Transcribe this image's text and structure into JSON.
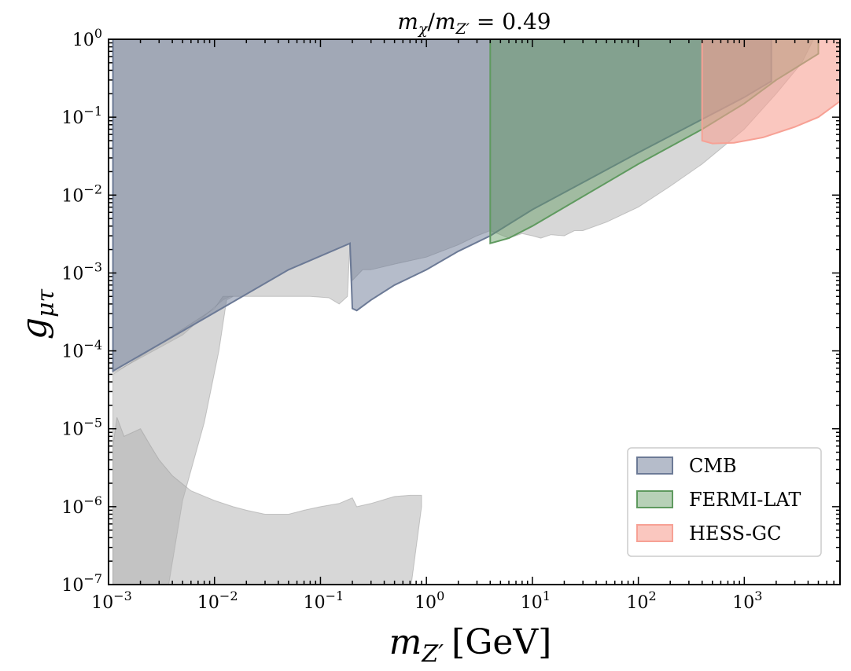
{
  "chart_data": {
    "type": "area",
    "title": "m_χ/m_Z′ = 0.49",
    "title_parts": {
      "lhs": "m",
      "sub1": "χ",
      "slash": "/",
      "m2": "m",
      "sub2": "Z′",
      "rhs": " = 0.49"
    },
    "xlabel": "m_Z′ [GeV]",
    "xlabel_parts": {
      "m": "m",
      "sub": "Z′",
      "unit": "[GeV]"
    },
    "ylabel": "g_μτ",
    "ylabel_parts": {
      "g": "g",
      "sub": "μτ"
    },
    "x_scale": "log",
    "y_scale": "log",
    "xlim": [
      0.001,
      8000
    ],
    "ylim": [
      1e-07,
      1
    ],
    "x_ticks": [
      {
        "value": 0.001,
        "base": "10",
        "exp": "−3"
      },
      {
        "value": 0.01,
        "base": "10",
        "exp": "−2"
      },
      {
        "value": 0.1,
        "base": "10",
        "exp": "−1"
      },
      {
        "value": 1,
        "base": "10",
        "exp": "0"
      },
      {
        "value": 10,
        "base": "10",
        "exp": "1"
      },
      {
        "value": 100,
        "base": "10",
        "exp": "2"
      },
      {
        "value": 1000,
        "base": "10",
        "exp": "3"
      }
    ],
    "y_ticks": [
      {
        "value": 1e-07,
        "base": "10",
        "exp": "−7"
      },
      {
        "value": 1e-06,
        "base": "10",
        "exp": "−6"
      },
      {
        "value": 1e-05,
        "base": "10",
        "exp": "−5"
      },
      {
        "value": 0.0001,
        "base": "10",
        "exp": "−4"
      },
      {
        "value": 0.001,
        "base": "10",
        "exp": "−3"
      },
      {
        "value": 0.01,
        "base": "10",
        "exp": "−2"
      },
      {
        "value": 0.1,
        "base": "10",
        "exp": "−1"
      },
      {
        "value": 1,
        "base": "10",
        "exp": "0"
      }
    ],
    "legend_position": "bottom-right",
    "grid": false,
    "background_regions": [
      {
        "color": "#b0b0b0",
        "opacity": 0.5,
        "polygon": [
          [
            0.0011,
            5.2e-05
          ],
          [
            0.005,
            0.00016
          ],
          [
            0.012,
            0.00045
          ],
          [
            0.014,
            0.0005
          ],
          [
            0.03,
            0.0005
          ],
          [
            0.08,
            0.0005
          ],
          [
            0.12,
            0.00048
          ],
          [
            0.15,
            0.0004
          ],
          [
            0.18,
            0.0005
          ],
          [
            0.19,
            0.0025
          ],
          [
            0.2,
            0.0008
          ],
          [
            0.25,
            0.0011
          ],
          [
            0.3,
            0.0011
          ],
          [
            0.5,
            0.0013
          ],
          [
            1,
            0.0016
          ],
          [
            2,
            0.0023
          ],
          [
            3,
            0.003
          ],
          [
            4,
            0.0035
          ],
          [
            6,
            0.0028
          ],
          [
            8,
            0.0032
          ],
          [
            10,
            0.003
          ],
          [
            12,
            0.0028
          ],
          [
            15,
            0.0031
          ],
          [
            20,
            0.003
          ],
          [
            25,
            0.0035
          ],
          [
            30,
            0.0035
          ],
          [
            50,
            0.0045
          ],
          [
            100,
            0.007
          ],
          [
            200,
            0.013
          ],
          [
            400,
            0.025
          ],
          [
            1000,
            0.07
          ],
          [
            2000,
            0.2
          ],
          [
            3500,
            0.5
          ],
          [
            4500,
            1
          ],
          [
            0.0011,
            1
          ]
        ]
      },
      {
        "color": "#b0b0b0",
        "opacity": 0.5,
        "polygon": [
          [
            0.0037,
            1e-07
          ],
          [
            0.005,
            1.2e-06
          ],
          [
            0.008,
            1.2e-05
          ],
          [
            0.011,
            0.0001
          ],
          [
            0.013,
            0.00045
          ],
          [
            0.015,
            0.0005
          ],
          [
            0.012,
            0.0005
          ],
          [
            0.01,
            0.00035
          ],
          [
            0.0011,
            5e-05
          ],
          [
            0.0011,
            1e-07
          ]
        ]
      },
      {
        "color": "#b0b0b0",
        "opacity": 0.5,
        "polygon": [
          [
            0.0011,
            1e-07
          ],
          [
            0.0011,
            6e-06
          ],
          [
            0.0012,
            1.4e-05
          ],
          [
            0.0014,
            8e-06
          ],
          [
            0.002,
            1e-05
          ],
          [
            0.0025,
            6e-06
          ],
          [
            0.003,
            4e-06
          ],
          [
            0.004,
            2.5e-06
          ],
          [
            0.006,
            1.6e-06
          ],
          [
            0.01,
            1.2e-06
          ],
          [
            0.015,
            1e-06
          ],
          [
            0.02,
            9e-07
          ],
          [
            0.03,
            8e-07
          ],
          [
            0.05,
            8e-07
          ],
          [
            0.07,
            9e-07
          ],
          [
            0.1,
            1e-06
          ],
          [
            0.15,
            1.1e-06
          ],
          [
            0.2,
            1.3e-06
          ],
          [
            0.22,
            1e-06
          ],
          [
            0.3,
            1.1e-06
          ],
          [
            0.5,
            1.35e-06
          ],
          [
            0.7,
            1.4e-06
          ],
          [
            0.9,
            1.4e-06
          ],
          [
            0.9,
            1e-06
          ],
          [
            0.72,
            1e-07
          ]
        ]
      }
    ],
    "series": [
      {
        "name": "CMB",
        "color": "#6c7a96",
        "fill_opacity": 0.5,
        "polygon": [
          [
            0.0011,
            5.5e-05
          ],
          [
            0.005,
            0.00018
          ],
          [
            0.05,
            0.0011
          ],
          [
            0.19,
            0.0024
          ],
          [
            0.2,
            0.00035
          ],
          [
            0.22,
            0.00033
          ],
          [
            0.3,
            0.00045
          ],
          [
            0.5,
            0.0007
          ],
          [
            1,
            0.0011
          ],
          [
            2,
            0.0019
          ],
          [
            4,
            0.003
          ],
          [
            10,
            0.0065
          ],
          [
            100,
            0.035
          ],
          [
            1000,
            0.18
          ],
          [
            1800,
            0.29
          ],
          [
            1800,
            1
          ],
          [
            0.0011,
            1
          ]
        ]
      },
      {
        "name": "FERMI-LAT",
        "color": "#5f9a5f",
        "fill_opacity": 0.45,
        "polygon": [
          [
            4,
            0.0024
          ],
          [
            6,
            0.0028
          ],
          [
            10,
            0.004
          ],
          [
            100,
            0.025
          ],
          [
            400,
            0.07
          ],
          [
            1000,
            0.15
          ],
          [
            2000,
            0.3
          ],
          [
            5000,
            0.65
          ],
          [
            5000,
            1
          ],
          [
            4,
            1
          ]
        ]
      },
      {
        "name": "HESS-GC",
        "color": "#f7a195",
        "fill_opacity": 0.6,
        "polygon": [
          [
            400,
            0.05
          ],
          [
            500,
            0.046
          ],
          [
            800,
            0.047
          ],
          [
            1500,
            0.055
          ],
          [
            3000,
            0.075
          ],
          [
            5000,
            0.1
          ],
          [
            8000,
            0.16
          ],
          [
            8000,
            1
          ],
          [
            400,
            1
          ]
        ]
      }
    ]
  }
}
